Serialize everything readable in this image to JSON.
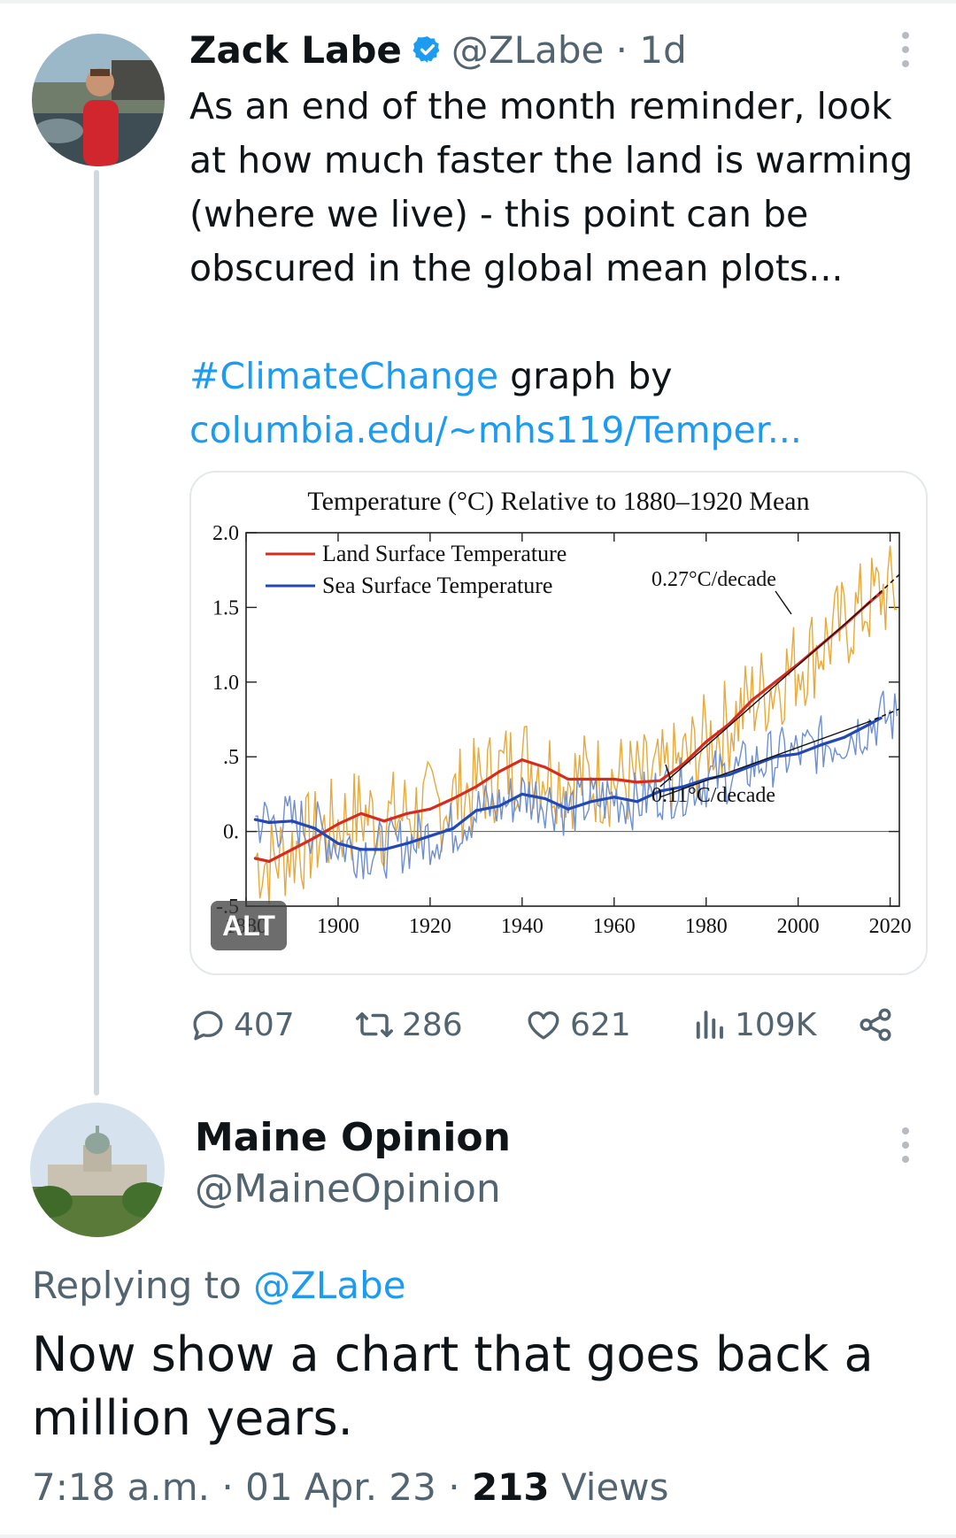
{
  "tweet": {
    "author_name": "Zack Labe",
    "handle": "@ZLabe",
    "time_ago": "1d",
    "text_lines": [
      "As an end of the month reminder, look",
      "at how much faster the land is warming",
      "(where we live) - this point can be",
      "obscured in the global mean plots..."
    ],
    "hashtag": "#ClimateChange",
    "text_after_hashtag": "graph by",
    "link": "columbia.edu/~mhs119/Temper...",
    "alt_badge": "ALT",
    "counts": {
      "replies": "407",
      "retweets": "286",
      "likes": "621",
      "views": "109K"
    }
  },
  "reply": {
    "author_name": "Maine Opinion",
    "handle": "@MaineOpinion",
    "replying_to_prefix": "Replying to",
    "replying_to_handle": "@ZLabe",
    "text": "Now show a chart that goes back a million years.",
    "time": "7:18 a.m.",
    "date": "01 Apr. 23",
    "views_count": "213",
    "views_label": "Views"
  },
  "colors": {
    "accent": "#1d9bf0",
    "muted": "#536471",
    "land_line": "#d62c1f",
    "land_annual": "#e8a93a",
    "sea_line": "#2348b4",
    "sea_annual": "#6d8fd3"
  },
  "chart_data": {
    "type": "line",
    "title": "Temperature (°C) Relative to 1880–1920 Mean",
    "xlim": [
      1880,
      2022
    ],
    "ylim": [
      -0.5,
      2.0
    ],
    "x_ticks": [
      "1880",
      "1900",
      "1920",
      "1940",
      "1960",
      "1980",
      "2000",
      "2020"
    ],
    "y_ticks": [
      "2.0",
      "1.5",
      "1.0",
      ".5",
      "0.",
      "-.5"
    ],
    "grid": false,
    "legend_position": "top-left",
    "series": [
      {
        "name": "Land Surface Temperature",
        "color": "#d62c1f",
        "x": [
          1882,
          1885,
          1890,
          1895,
          1900,
          1905,
          1910,
          1915,
          1920,
          1925,
          1930,
          1935,
          1940,
          1945,
          1950,
          1955,
          1960,
          1965,
          1970,
          1975,
          1980,
          1985,
          1990,
          1995,
          2000,
          2005,
          2010,
          2015,
          2018
        ],
        "y": [
          -0.18,
          -0.2,
          -0.12,
          -0.04,
          0.05,
          0.12,
          0.07,
          0.12,
          0.15,
          0.22,
          0.3,
          0.4,
          0.48,
          0.43,
          0.35,
          0.35,
          0.35,
          0.33,
          0.34,
          0.45,
          0.6,
          0.72,
          0.88,
          1.0,
          1.12,
          1.25,
          1.38,
          1.52,
          1.6
        ]
      },
      {
        "name": "Sea Surface Temperature",
        "color": "#2348b4",
        "x": [
          1882,
          1885,
          1890,
          1895,
          1900,
          1905,
          1910,
          1915,
          1920,
          1925,
          1930,
          1935,
          1940,
          1945,
          1950,
          1955,
          1960,
          1965,
          1970,
          1975,
          1980,
          1985,
          1990,
          1995,
          2000,
          2005,
          2010,
          2015,
          2018
        ],
        "y": [
          0.08,
          0.06,
          0.07,
          0.02,
          -0.08,
          -0.12,
          -0.12,
          -0.08,
          -0.03,
          0.02,
          0.14,
          0.17,
          0.25,
          0.22,
          0.15,
          0.2,
          0.23,
          0.2,
          0.27,
          0.3,
          0.35,
          0.38,
          0.44,
          0.5,
          0.52,
          0.58,
          0.63,
          0.71,
          0.76
        ]
      }
    ],
    "annotations": [
      {
        "text": "0.27°C/decade",
        "target": "Land Surface Temperature"
      },
      {
        "text": "0.11°C/decade",
        "target": "Sea Surface Temperature"
      }
    ]
  }
}
